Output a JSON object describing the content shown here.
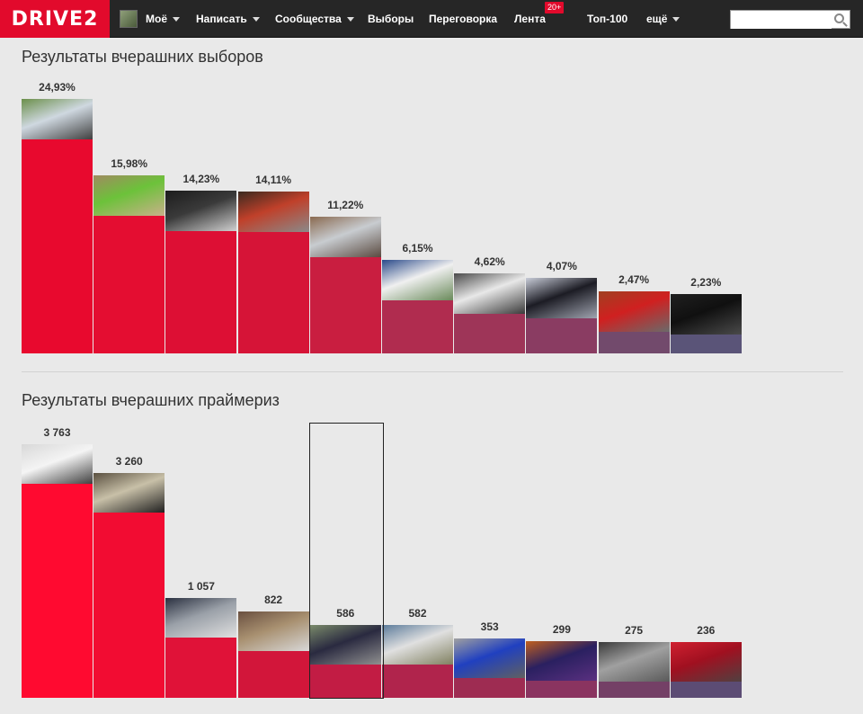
{
  "nav": {
    "logo": "DRIVE2",
    "items": [
      {
        "label": "Моё",
        "caret": true
      },
      {
        "label": "Написать",
        "caret": true
      },
      {
        "label": "Сообщества",
        "caret": true
      },
      {
        "label": "Выборы",
        "caret": false
      },
      {
        "label": "Переговорка",
        "caret": false
      },
      {
        "label": "Лента",
        "caret": false
      },
      {
        "label": "Топ-100",
        "caret": false
      },
      {
        "label": "ещё",
        "caret": true
      }
    ],
    "lenta_badge": "20+",
    "search_value": "",
    "search_icon": "search-icon"
  },
  "elections": {
    "title": "Результаты вчерашних выборов",
    "bars": [
      {
        "label": "24,93%",
        "value": 24.93,
        "color": "#e8092e",
        "photo": [
          "#6b8f4a",
          "#cfd8e0",
          "#404040"
        ]
      },
      {
        "label": "15,98%",
        "value": 15.98,
        "color": "#e40d31",
        "photo": [
          "#a08a60",
          "#6cc23a",
          "#c9b08a"
        ]
      },
      {
        "label": "14,23%",
        "value": 14.23,
        "color": "#dd0f34",
        "photo": [
          "#1c1c1c",
          "#3a3a3a",
          "#d0d0d0"
        ]
      },
      {
        "label": "14,11%",
        "value": 14.11,
        "color": "#d61437",
        "photo": [
          "#3a2a20",
          "#c0402a",
          "#8a8a8a"
        ]
      },
      {
        "label": "11,22%",
        "value": 11.22,
        "color": "#c91e40",
        "photo": [
          "#8a6a50",
          "#c8ccd0",
          "#5a4a40"
        ]
      },
      {
        "label": "6,15%",
        "value": 6.15,
        "color": "#b02c4f",
        "photo": [
          "#2a4a8a",
          "#f0f0f0",
          "#6a8a5a"
        ]
      },
      {
        "label": "4,62%",
        "value": 4.62,
        "color": "#9e3558",
        "photo": [
          "#4a4a4a",
          "#e8e8e8",
          "#3a3a3a"
        ]
      },
      {
        "label": "4,07%",
        "value": 4.07,
        "color": "#8a3c62",
        "photo": [
          "#c8ccd8",
          "#1c1c24",
          "#a0a4b0"
        ]
      },
      {
        "label": "2,47%",
        "value": 2.47,
        "color": "#724a6c",
        "photo": [
          "#a04020",
          "#d02020",
          "#6a6a6a"
        ]
      },
      {
        "label": "2,23%",
        "value": 2.23,
        "color": "#5a5478",
        "photo": [
          "#202020",
          "#101010",
          "#4a4a4a"
        ]
      }
    ]
  },
  "primaries": {
    "title": "Результаты вчерашних праймериз",
    "bars": [
      {
        "label": "3 763",
        "value": 3763,
        "color": "#ff0a30",
        "photo": [
          "#d8d8d8",
          "#f4f4f4",
          "#404040"
        ]
      },
      {
        "label": "3 260",
        "value": 3260,
        "color": "#f20c32",
        "photo": [
          "#5a5040",
          "#c8c0a8",
          "#202020"
        ]
      },
      {
        "label": "1 057",
        "value": 1057,
        "color": "#e01238",
        "photo": [
          "#2a3040",
          "#9aa0a8",
          "#e0e0e0"
        ]
      },
      {
        "label": "822",
        "value": 822,
        "color": "#d2163a",
        "photo": [
          "#6a5040",
          "#a89070",
          "#d8d8d8"
        ]
      },
      {
        "label": "586",
        "value": 586,
        "color": "#c21c44",
        "photo": [
          "#7a8a6a",
          "#2a2a40",
          "#909090"
        ]
      },
      {
        "label": "582",
        "value": 582,
        "color": "#b0244c",
        "photo": [
          "#5a7a9a",
          "#e0e0e0",
          "#808060"
        ]
      },
      {
        "label": "353",
        "value": 353,
        "color": "#9e2c52",
        "photo": [
          "#a0a0a0",
          "#2040c0",
          "#606060"
        ]
      },
      {
        "label": "299",
        "value": 299,
        "color": "#8a3460",
        "photo": [
          "#c06020",
          "#2a2060",
          "#5a3080"
        ]
      },
      {
        "label": "275",
        "value": 275,
        "color": "#744066",
        "photo": [
          "#3a3a3a",
          "#a0a0a0",
          "#5a5a5a"
        ]
      },
      {
        "label": "236",
        "value": 236,
        "color": "#5c4c74",
        "photo": [
          "#d02030",
          "#a01020",
          "#504040"
        ]
      }
    ],
    "highlighted_index": 4
  }
}
